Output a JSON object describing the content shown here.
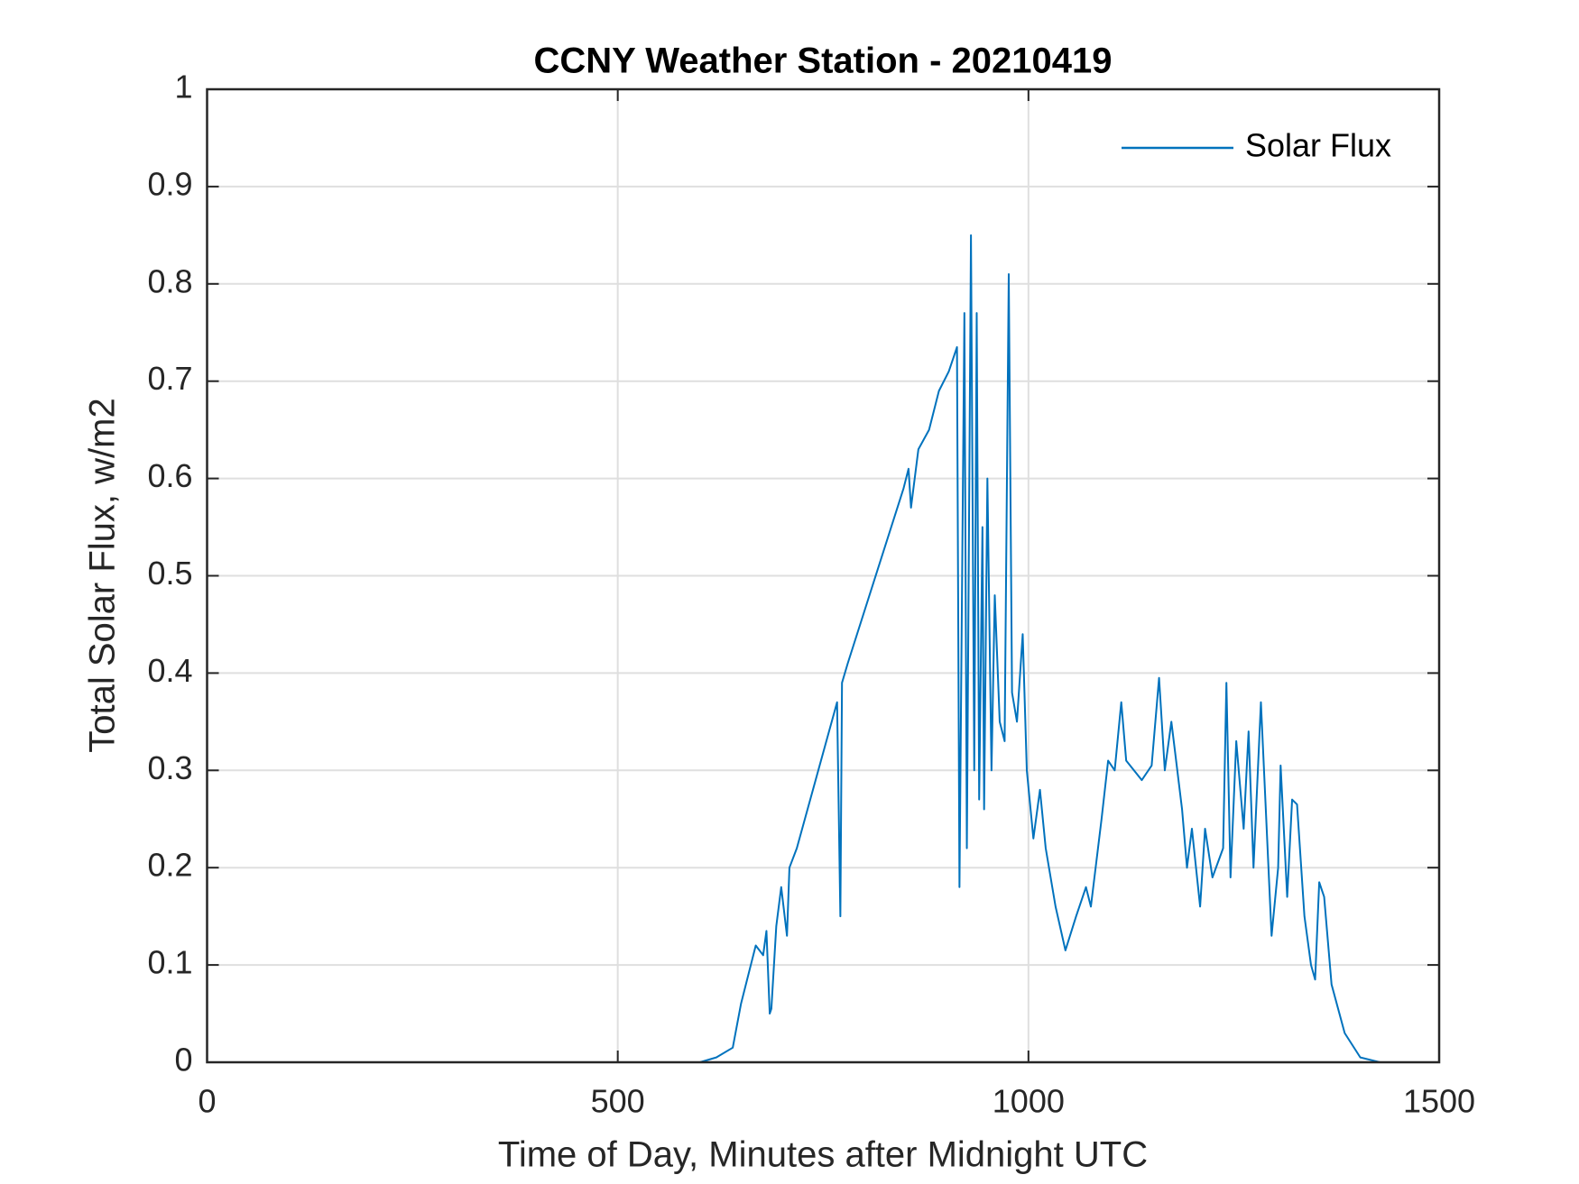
{
  "chart_data": {
    "type": "line",
    "title": "CCNY Weather Station - 20210419",
    "x_label": "Time of Day, Minutes after Midnight UTC",
    "y_label": "Total Solar Flux, w/m2",
    "x": [
      0,
      600,
      620,
      640,
      650,
      668,
      677,
      681,
      685,
      687,
      693,
      699,
      706,
      709,
      718,
      767,
      771,
      773,
      780,
      848,
      854,
      857,
      866,
      879,
      891,
      903,
      913,
      916,
      922,
      925,
      930,
      934,
      937,
      940,
      944,
      946,
      950,
      955,
      959,
      965,
      971,
      976,
      980,
      986,
      993,
      998,
      1006,
      1014,
      1021,
      1033,
      1045,
      1058,
      1070,
      1076,
      1089,
      1097,
      1105,
      1113,
      1119,
      1138,
      1150,
      1159,
      1166,
      1174,
      1187,
      1193,
      1199,
      1209,
      1215,
      1224,
      1237,
      1241,
      1246,
      1253,
      1262,
      1268,
      1274,
      1283,
      1296,
      1304,
      1307,
      1315,
      1321,
      1327,
      1336,
      1344,
      1349,
      1354,
      1360,
      1369,
      1385,
      1404,
      1428,
      1440
    ],
    "series": [
      {
        "name": "Solar Flux",
        "color": "#0072bd",
        "values": [
          0,
          0,
          0.005,
          0.015,
          0.06,
          0.12,
          0.11,
          0.135,
          0.05,
          0.055,
          0.14,
          0.18,
          0.13,
          0.2,
          0.22,
          0.37,
          0.15,
          0.39,
          0.41,
          0.59,
          0.61,
          0.57,
          0.63,
          0.65,
          0.69,
          0.71,
          0.735,
          0.18,
          0.77,
          0.22,
          0.85,
          0.3,
          0.77,
          0.27,
          0.55,
          0.26,
          0.6,
          0.3,
          0.48,
          0.35,
          0.33,
          0.81,
          0.38,
          0.35,
          0.44,
          0.3,
          0.23,
          0.28,
          0.22,
          0.16,
          0.115,
          0.15,
          0.18,
          0.16,
          0.25,
          0.31,
          0.3,
          0.37,
          0.31,
          0.29,
          0.305,
          0.395,
          0.3,
          0.35,
          0.26,
          0.2,
          0.24,
          0.16,
          0.24,
          0.19,
          0.22,
          0.39,
          0.19,
          0.33,
          0.24,
          0.34,
          0.2,
          0.37,
          0.13,
          0.2,
          0.305,
          0.17,
          0.27,
          0.265,
          0.15,
          0.1,
          0.085,
          0.185,
          0.17,
          0.08,
          0.03,
          0.005,
          0,
          0
        ]
      }
    ],
    "xlim": [
      0,
      1500
    ],
    "xticks": [
      0,
      500,
      1000,
      1500
    ],
    "ylim": [
      0,
      1
    ],
    "yticks": [
      0,
      0.1,
      0.2,
      0.3,
      0.4,
      0.5,
      0.6,
      0.7,
      0.8,
      0.9,
      1
    ],
    "grid": true,
    "legend": "upper right"
  }
}
